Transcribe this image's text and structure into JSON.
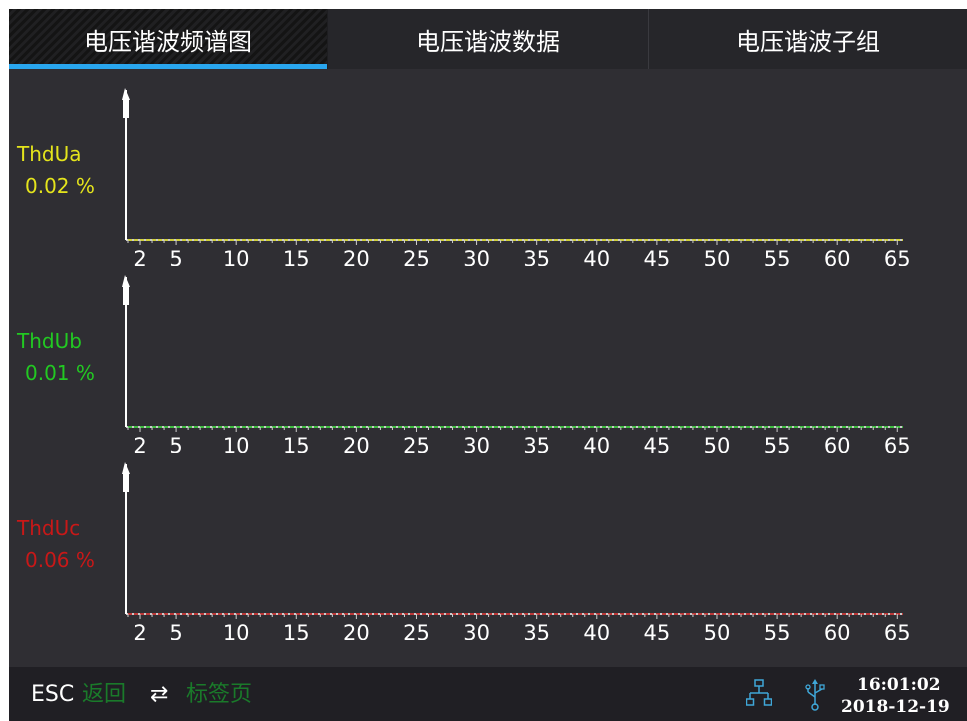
{
  "tabs": [
    {
      "label": "电压谐波频谱图",
      "active": true
    },
    {
      "label": "电压谐波数据",
      "active": false
    },
    {
      "label": "电压谐波子组",
      "active": false
    }
  ],
  "charts": [
    {
      "name": "ThdUa",
      "value": "0.02 %",
      "color": "#e4e41c"
    },
    {
      "name": "ThdUb",
      "value": "0.01 %",
      "color": "#22c922"
    },
    {
      "name": "ThdUc",
      "value": "0.06 %",
      "color": "#c81818"
    }
  ],
  "x_ticks": [
    "2",
    "5",
    "10",
    "15",
    "20",
    "25",
    "30",
    "35",
    "40",
    "45",
    "50",
    "55",
    "60",
    "65"
  ],
  "status": {
    "esc": "ESC",
    "back": "返回",
    "swap": "⇄",
    "tab_page": "标签页",
    "network_icon": "network-icon",
    "usb_icon": "usb-icon",
    "time": "16:01:02",
    "date": "2018-12-19"
  },
  "colors": {
    "accent": "#29a6ee",
    "background": "#2f2e33"
  }
}
